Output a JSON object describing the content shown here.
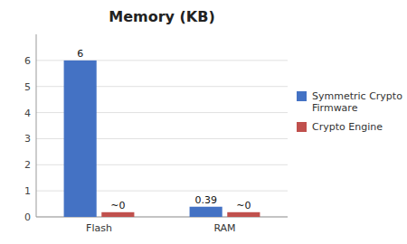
{
  "chart_data": {
    "type": "bar",
    "title": "Memory (KB)",
    "categories": [
      "Flash",
      "RAM"
    ],
    "series": [
      {
        "name": "Symmetric Crypto\nFirmware",
        "color": "#4472C4",
        "values": [
          6,
          0.39
        ]
      },
      {
        "name": "Crypto Engine",
        "color": "#C0504D",
        "values": [
          0.18,
          0.18
        ],
        "value_labels": [
          "~0",
          "~0"
        ]
      }
    ],
    "ylim": [
      0,
      7.0
    ],
    "yticks": [
      0,
      1,
      2,
      3,
      4,
      5,
      6
    ],
    "grid": true,
    "legend": "right",
    "data_labels": true
  }
}
